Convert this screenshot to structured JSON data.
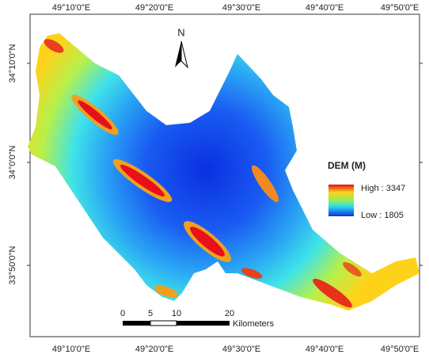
{
  "map": {
    "lon_labels_top": [
      "49°10'0\"E",
      "49°20'0\"E",
      "49°30'0\"E",
      "49°40'0\"E",
      "49°50'0\"E"
    ],
    "lon_labels_bottom": [
      "49°10'0\"E",
      "49°20'0\"E",
      "49°30'0\"E",
      "49°40'0\"E",
      "49°50'0\"E"
    ],
    "lat_labels": [
      "34°10'0\"N",
      "34°0'0\"N",
      "33°50'0\"N"
    ],
    "north": "N",
    "legend": {
      "title": "DEM (M)",
      "high": "High : 3347",
      "low": "Low : 1805"
    },
    "scale_bar": {
      "labels": [
        "0",
        "5",
        "10",
        "20"
      ],
      "unit": "Kilometers"
    }
  }
}
